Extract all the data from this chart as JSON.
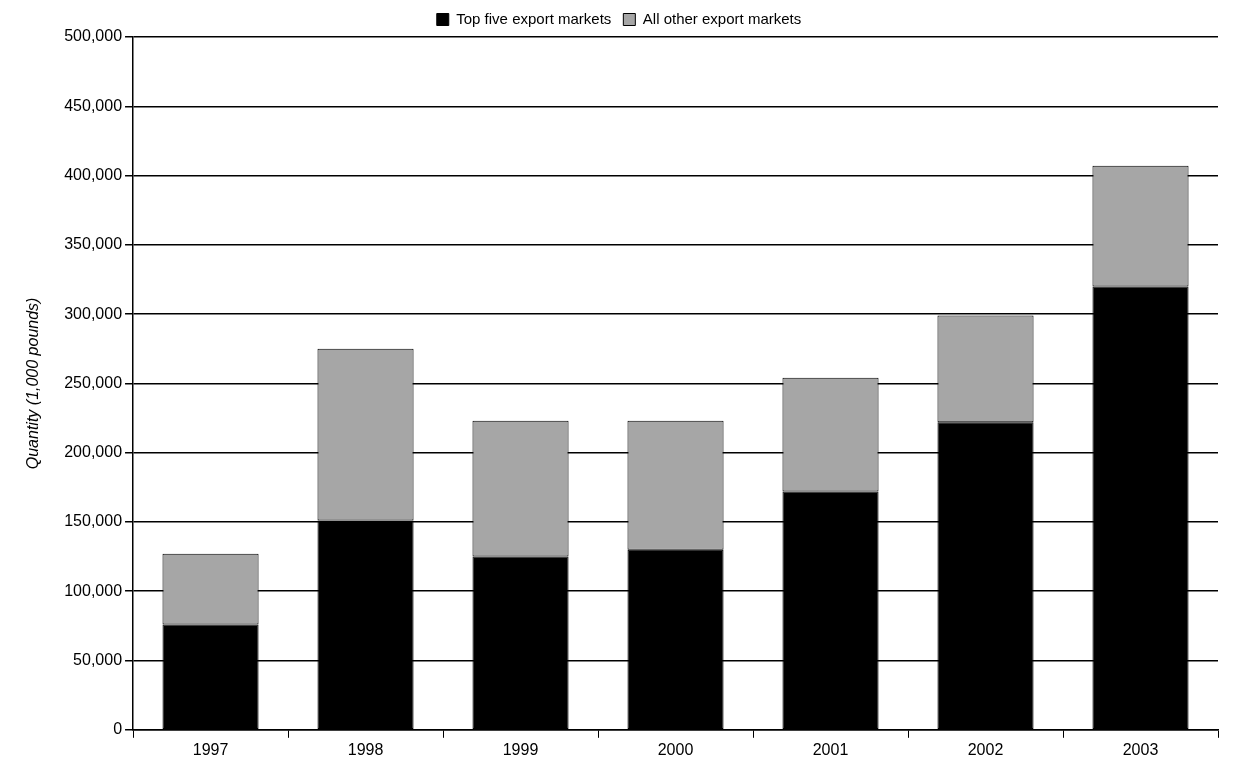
{
  "chart_data": {
    "type": "bar",
    "stacked": true,
    "ylabel": "Quantity (1,000 pounds)",
    "categories": [
      "1997",
      "1998",
      "1999",
      "2000",
      "2001",
      "2002",
      "2003"
    ],
    "series": [
      {
        "name": "Top five export markets",
        "color": "#000000",
        "values": [
          76000,
          151000,
          125000,
          130000,
          172000,
          222000,
          320000
        ]
      },
      {
        "name": "All other export markets",
        "color": "#a6a6a6",
        "values": [
          51000,
          124000,
          98000,
          93000,
          82000,
          77000,
          87000
        ]
      }
    ],
    "ylim": [
      0,
      500000
    ],
    "yticks": [
      {
        "value": 0,
        "label": "0"
      },
      {
        "value": 50000,
        "label": "50,000"
      },
      {
        "value": 100000,
        "label": "100,000"
      },
      {
        "value": 150000,
        "label": "150,000"
      },
      {
        "value": 200000,
        "label": "200,000"
      },
      {
        "value": 250000,
        "label": "250,000"
      },
      {
        "value": 300000,
        "label": "300,000"
      },
      {
        "value": 350000,
        "label": "350,000"
      },
      {
        "value": 400000,
        "label": "400,000"
      },
      {
        "value": 450000,
        "label": "450,000"
      },
      {
        "value": 500000,
        "label": "500,000"
      }
    ],
    "grid": "y",
    "legend": "top"
  }
}
